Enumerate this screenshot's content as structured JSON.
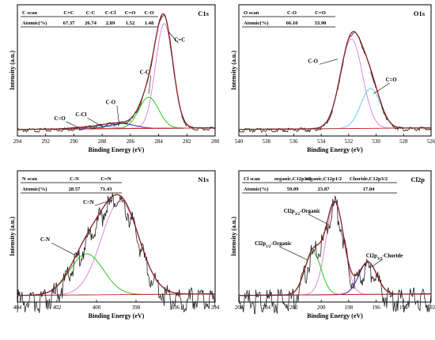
{
  "chart_data": [
    {
      "type": "line",
      "title": "C1s",
      "xlabel": "Binding Energy (eV)",
      "ylabel": "Intensity (a.u.)",
      "xlim": [
        294,
        280
      ],
      "xticks": [
        294,
        292,
        290,
        288,
        286,
        284,
        282,
        280
      ],
      "ylim": [
        0,
        1
      ],
      "table": {
        "headers": [
          "C scan",
          "C=C",
          "C-C",
          "C-Cl",
          "C=O",
          "C-O"
        ],
        "row": [
          "Atomic(%)",
          "67.37",
          "26.74",
          "2.89",
          "1.52",
          "1.48"
        ]
      },
      "annotations": [
        "C=C",
        "C-C",
        "C-O",
        "C-Cl",
        "C=O"
      ],
      "peaks": [
        {
          "center": 283.6,
          "height": 0.84,
          "width": 0.62,
          "color": "#dd88dd"
        },
        {
          "center": 284.7,
          "height": 0.25,
          "width": 0.7,
          "color": "#22cc22"
        },
        {
          "center": 286.6,
          "height": 0.04,
          "width": 0.9,
          "color": "#2222cc"
        },
        {
          "center": 288.0,
          "height": 0.02,
          "width": 0.8,
          "color": "#33aaee"
        },
        {
          "center": 289.6,
          "height": 0.01,
          "width": 0.8,
          "color": "#ee5555"
        }
      ]
    },
    {
      "type": "line",
      "title": "O1s",
      "xlabel": "Binding Energy (eV)",
      "ylabel": "Intensity (a.u.)",
      "xlim": [
        540,
        526
      ],
      "xticks": [
        540,
        538,
        536,
        534,
        532,
        530,
        528,
        526
      ],
      "ylim": [
        0,
        1
      ],
      "table": {
        "headers": [
          "O scan",
          "C-O",
          "C=O"
        ],
        "row": [
          "Atomic(%)",
          "66.10",
          "33.90"
        ]
      },
      "annotations": [
        "C-O",
        "C=O"
      ],
      "peaks": [
        {
          "center": 531.8,
          "height": 0.72,
          "width": 0.8,
          "color": "#dd88dd"
        },
        {
          "center": 530.4,
          "height": 0.32,
          "width": 0.72,
          "color": "#66ccee"
        }
      ]
    },
    {
      "type": "line",
      "title": "N1s",
      "xlabel": "Binding Energy (eV)",
      "ylabel": "Intensity (a.u.)",
      "xlim": [
        404,
        394
      ],
      "xticks": [
        404,
        402,
        400,
        398,
        396,
        394
      ],
      "ylim": [
        0,
        1
      ],
      "table": {
        "headers": [
          "N scan",
          "C-N",
          "C=N"
        ],
        "row": [
          "Atomic(%)",
          "28.57",
          "71.43"
        ]
      },
      "annotations": [
        "C=N",
        "C-N"
      ],
      "peaks": [
        {
          "center": 398.8,
          "height": 0.75,
          "width": 0.95,
          "color": "#dd88dd"
        },
        {
          "center": 400.5,
          "height": 0.33,
          "width": 0.85,
          "color": "#22cc22"
        }
      ]
    },
    {
      "type": "line",
      "title": "Cl2p",
      "xlabel": "Binding Energy (eV)",
      "ylabel": "Intensity (a.u.)",
      "xlim": [
        206,
        192
      ],
      "xticks": [
        206,
        204,
        202,
        200,
        198,
        196,
        194,
        192
      ],
      "ylim": [
        0,
        1
      ],
      "table": {
        "headers": [
          "Cl scan",
          "organic,C12p3/2",
          "organic,C12p1/2",
          "Choride,C12p3/2"
        ],
        "row": [
          "Atomic(%)",
          "59.09",
          "23.87",
          "17.04"
        ]
      },
      "annotations": [
        "Cl2p3/2-Organic",
        "Cl2p1/2-Organic",
        "Cl2p3/2-Choride"
      ],
      "peaks": [
        {
          "center": 199.0,
          "height": 0.74,
          "width": 0.65,
          "color": "#dd88dd"
        },
        {
          "center": 200.6,
          "height": 0.34,
          "width": 0.6,
          "color": "#22cc22"
        },
        {
          "center": 196.6,
          "height": 0.26,
          "width": 0.65,
          "color": "#2222cc"
        }
      ]
    }
  ]
}
